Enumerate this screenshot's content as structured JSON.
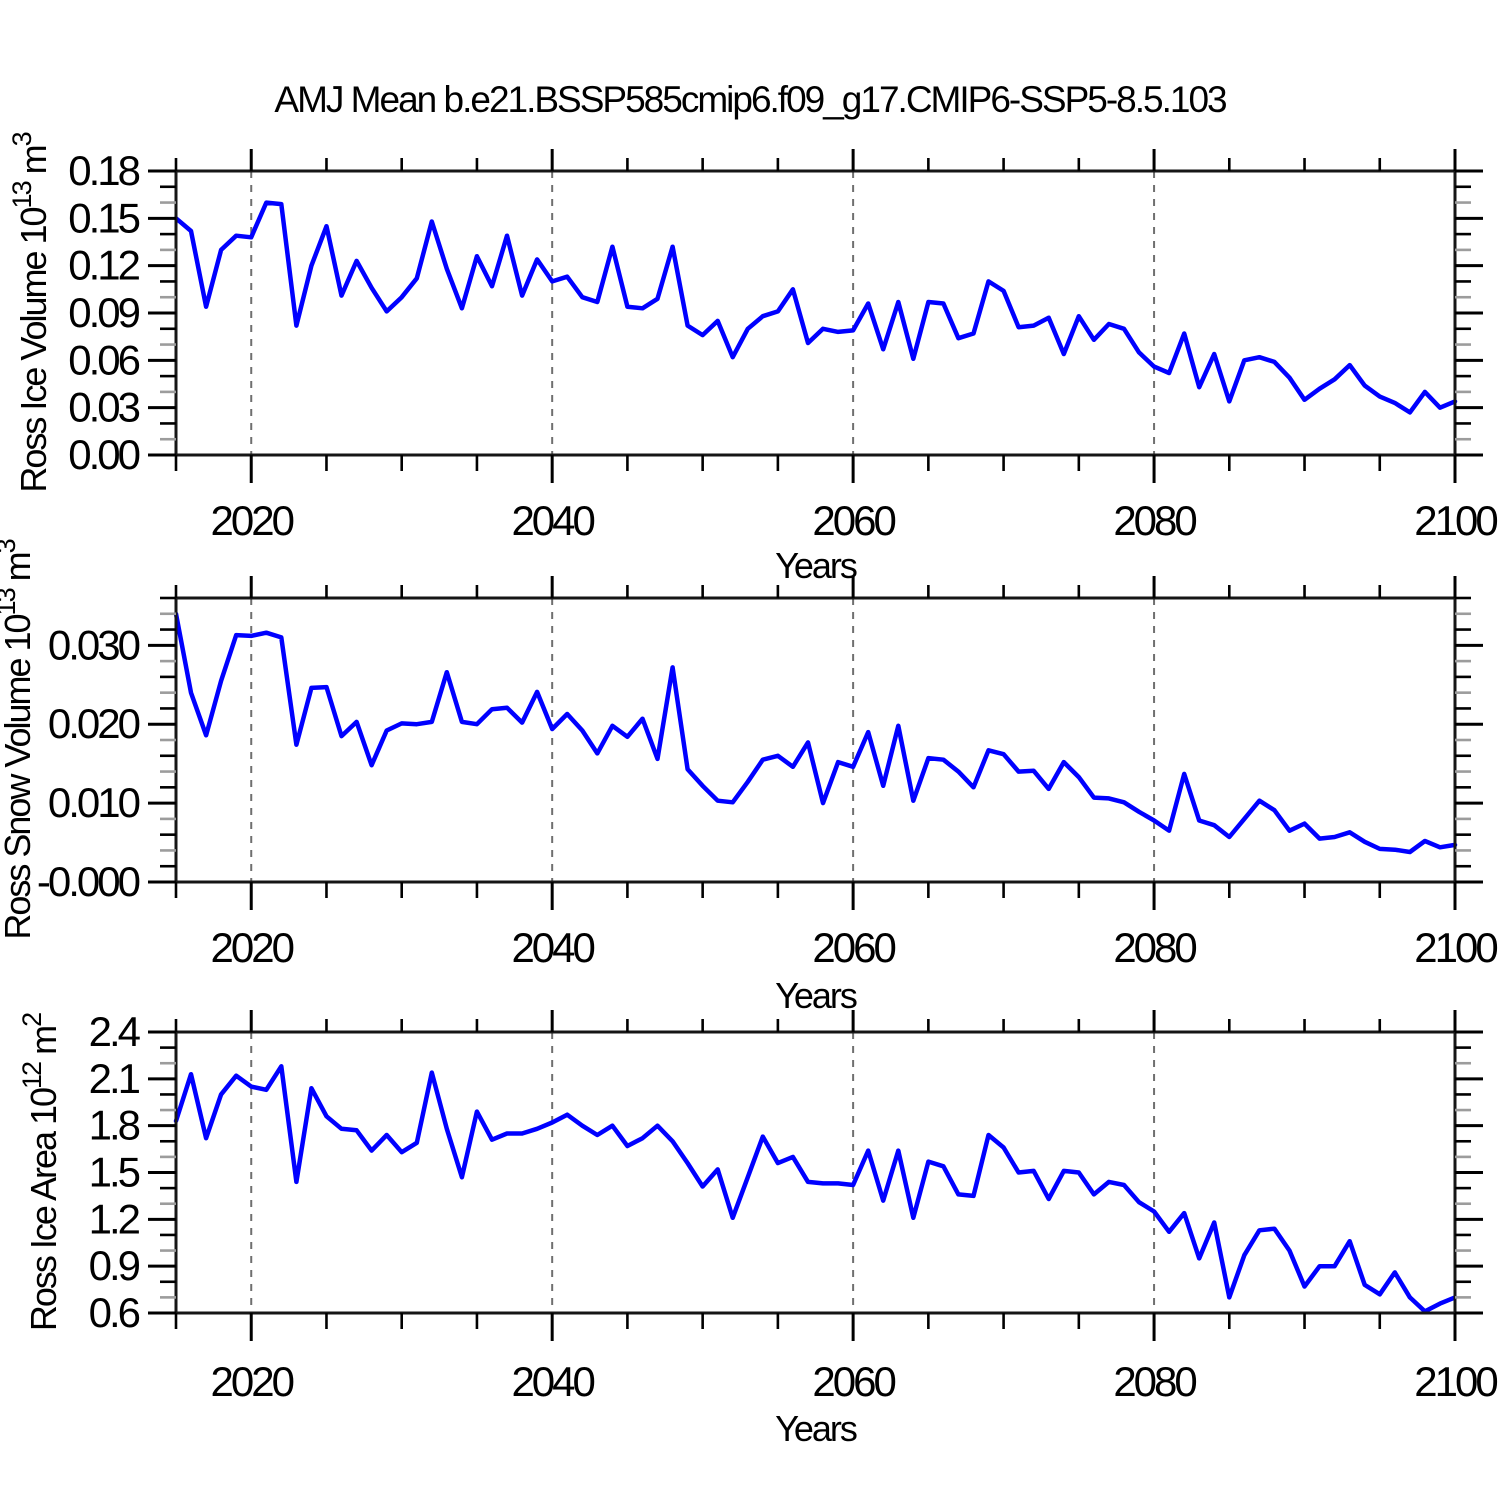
{
  "chart": {
    "title": "AMJ Mean b.e21.BSSP585cmip6.f09_g17.CMIP6-SSP5-8.5.103"
  },
  "styling": {
    "line_color": "#0000ff",
    "axis_color": "#000000",
    "grid_color": "#6f6f6f",
    "minor_tick_gray": "#9c9c9c",
    "background": "#ffffff"
  },
  "chart_data": [
    {
      "type": "line",
      "panel": "ross-ice-volume",
      "title": "",
      "xlabel": "Years",
      "ylabel": "Ross Ice Volume 10^13 m^3",
      "ylabel_parts": [
        {
          "t": "Ross Ice Volume 10"
        },
        {
          "t": "13",
          "sup": true
        },
        {
          "t": " m"
        },
        {
          "t": "3",
          "sup": true
        }
      ],
      "xlim": [
        2015,
        2100
      ],
      "ylim": [
        0,
        0.18
      ],
      "xticks_major": [
        2020,
        2040,
        2060,
        2080,
        2100
      ],
      "xtick_labels": [
        "2020",
        "2040",
        "2060",
        "2080",
        "2100"
      ],
      "xtick_minor_step": 5,
      "grid_years": [
        2020,
        2040,
        2060,
        2080
      ],
      "ytick_major_step": 0.03,
      "ytick_minor_step": 0.01,
      "ytick_decimals": 2,
      "ytick_labels": [
        "0.00",
        "0.03",
        "0.06",
        "0.09",
        "0.12",
        "0.15",
        "0.18"
      ],
      "x": [
        2015,
        2016,
        2017,
        2018,
        2019,
        2020,
        2021,
        2022,
        2023,
        2024,
        2025,
        2026,
        2027,
        2028,
        2029,
        2030,
        2031,
        2032,
        2033,
        2034,
        2035,
        2036,
        2037,
        2038,
        2039,
        2040,
        2041,
        2042,
        2043,
        2044,
        2045,
        2046,
        2047,
        2048,
        2049,
        2050,
        2051,
        2052,
        2053,
        2054,
        2055,
        2056,
        2057,
        2058,
        2059,
        2060,
        2061,
        2062,
        2063,
        2064,
        2065,
        2066,
        2067,
        2068,
        2069,
        2070,
        2071,
        2072,
        2073,
        2074,
        2075,
        2076,
        2077,
        2078,
        2079,
        2080,
        2081,
        2082,
        2083,
        2084,
        2085,
        2086,
        2087,
        2088,
        2089,
        2090,
        2091,
        2092,
        2093,
        2094,
        2095,
        2096,
        2097,
        2098,
        2099,
        2100
      ],
      "values": [
        0.15,
        0.142,
        0.094,
        0.13,
        0.139,
        0.138,
        0.16,
        0.159,
        0.082,
        0.12,
        0.145,
        0.101,
        0.123,
        0.106,
        0.091,
        0.1,
        0.112,
        0.148,
        0.118,
        0.093,
        0.126,
        0.107,
        0.139,
        0.101,
        0.124,
        0.11,
        0.113,
        0.1,
        0.097,
        0.132,
        0.094,
        0.093,
        0.099,
        0.132,
        0.082,
        0.076,
        0.085,
        0.062,
        0.08,
        0.088,
        0.091,
        0.105,
        0.071,
        0.08,
        0.078,
        0.079,
        0.096,
        0.067,
        0.097,
        0.061,
        0.097,
        0.096,
        0.074,
        0.077,
        0.11,
        0.104,
        0.081,
        0.082,
        0.087,
        0.064,
        0.088,
        0.073,
        0.083,
        0.08,
        0.065,
        0.056,
        0.052,
        0.077,
        0.043,
        0.064,
        0.034,
        0.06,
        0.062,
        0.059,
        0.049,
        0.035,
        0.042,
        0.048,
        0.057,
        0.044,
        0.037,
        0.033,
        0.027,
        0.04,
        0.03,
        0.034
      ]
    },
    {
      "type": "line",
      "panel": "ross-snow-volume",
      "title": "",
      "xlabel": "Years",
      "ylabel": "Ross Snow Volume 10^13 m^3",
      "ylabel_parts": [
        {
          "t": "Ross Snow Volume 10"
        },
        {
          "t": "13",
          "sup": true
        },
        {
          "t": " m"
        },
        {
          "t": "3",
          "sup": true
        }
      ],
      "xlim": [
        2015,
        2100
      ],
      "ylim": [
        0,
        0.036
      ],
      "xticks_major": [
        2020,
        2040,
        2060,
        2080,
        2100
      ],
      "xtick_labels": [
        "2020",
        "2040",
        "2060",
        "2080",
        "2100"
      ],
      "xtick_minor_step": 5,
      "grid_years": [
        2020,
        2040,
        2060,
        2080
      ],
      "ytick_major_step": 0.01,
      "ytick_minor_step": 0.002,
      "ytick_decimals": 3,
      "ytick_labels": [
        "0.000",
        "0.010",
        "0.020",
        "0.030"
      ],
      "x": [
        2015,
        2016,
        2017,
        2018,
        2019,
        2020,
        2021,
        2022,
        2023,
        2024,
        2025,
        2026,
        2027,
        2028,
        2029,
        2030,
        2031,
        2032,
        2033,
        2034,
        2035,
        2036,
        2037,
        2038,
        2039,
        2040,
        2041,
        2042,
        2043,
        2044,
        2045,
        2046,
        2047,
        2048,
        2049,
        2050,
        2051,
        2052,
        2053,
        2054,
        2055,
        2056,
        2057,
        2058,
        2059,
        2060,
        2061,
        2062,
        2063,
        2064,
        2065,
        2066,
        2067,
        2068,
        2069,
        2070,
        2071,
        2072,
        2073,
        2074,
        2075,
        2076,
        2077,
        2078,
        2079,
        2080,
        2081,
        2082,
        2083,
        2084,
        2085,
        2086,
        2087,
        2088,
        2089,
        2090,
        2091,
        2092,
        2093,
        2094,
        2095,
        2096,
        2097,
        2098,
        2099,
        2100
      ],
      "values": [
        0.034,
        0.024,
        0.0186,
        0.0255,
        0.0313,
        0.0312,
        0.0316,
        0.031,
        0.0174,
        0.0246,
        0.0247,
        0.0185,
        0.0203,
        0.0148,
        0.0192,
        0.0201,
        0.02,
        0.0203,
        0.0266,
        0.0203,
        0.02,
        0.0219,
        0.0221,
        0.0202,
        0.0241,
        0.0194,
        0.0213,
        0.0192,
        0.0163,
        0.0198,
        0.0184,
        0.0207,
        0.0156,
        0.0272,
        0.0143,
        0.0122,
        0.0103,
        0.0101,
        0.0127,
        0.0155,
        0.016,
        0.0146,
        0.0177,
        0.01,
        0.0152,
        0.0146,
        0.019,
        0.0122,
        0.0198,
        0.0103,
        0.0157,
        0.0155,
        0.014,
        0.012,
        0.0167,
        0.0162,
        0.014,
        0.0141,
        0.0118,
        0.0152,
        0.0133,
        0.0107,
        0.0106,
        0.0101,
        0.0089,
        0.0078,
        0.0065,
        0.0137,
        0.0078,
        0.0072,
        0.0057,
        0.008,
        0.0103,
        0.0091,
        0.0065,
        0.0074,
        0.0055,
        0.0057,
        0.0063,
        0.0051,
        0.0042,
        0.0041,
        0.0038,
        0.0052,
        0.0044,
        0.0047
      ]
    },
    {
      "type": "line",
      "panel": "ross-ice-area",
      "title": "",
      "xlabel": "Years",
      "ylabel": "Ross Ice Area 10^12 m^2",
      "ylabel_parts": [
        {
          "t": "Ross Ice Area 10"
        },
        {
          "t": "12",
          "sup": true
        },
        {
          "t": " m"
        },
        {
          "t": "2",
          "sup": true
        }
      ],
      "xlim": [
        2015,
        2100
      ],
      "ylim": [
        0.6,
        2.4
      ],
      "xticks_major": [
        2020,
        2040,
        2060,
        2080,
        2100
      ],
      "xtick_labels": [
        "2020",
        "2040",
        "2060",
        "2080",
        "2100"
      ],
      "xtick_minor_step": 5,
      "grid_years": [
        2020,
        2040,
        2060,
        2080
      ],
      "ytick_major_step": 0.3,
      "ytick_minor_step": 0.1,
      "ytick_decimals": 1,
      "ytick_labels": [
        "0.6",
        "0.9",
        "1.2",
        "1.5",
        "1.8",
        "2.1",
        "2.4"
      ],
      "x": [
        2015,
        2016,
        2017,
        2018,
        2019,
        2020,
        2021,
        2022,
        2023,
        2024,
        2025,
        2026,
        2027,
        2028,
        2029,
        2030,
        2031,
        2032,
        2033,
        2034,
        2035,
        2036,
        2037,
        2038,
        2039,
        2040,
        2041,
        2042,
        2043,
        2044,
        2045,
        2046,
        2047,
        2048,
        2049,
        2050,
        2051,
        2052,
        2053,
        2054,
        2055,
        2056,
        2057,
        2058,
        2059,
        2060,
        2061,
        2062,
        2063,
        2064,
        2065,
        2066,
        2067,
        2068,
        2069,
        2070,
        2071,
        2072,
        2073,
        2074,
        2075,
        2076,
        2077,
        2078,
        2079,
        2080,
        2081,
        2082,
        2083,
        2084,
        2085,
        2086,
        2087,
        2088,
        2089,
        2090,
        2091,
        2092,
        2093,
        2094,
        2095,
        2096,
        2097,
        2098,
        2099,
        2100
      ],
      "values": [
        1.83,
        2.13,
        1.72,
        2.0,
        2.12,
        2.05,
        2.03,
        2.18,
        1.44,
        2.04,
        1.86,
        1.78,
        1.77,
        1.64,
        1.74,
        1.63,
        1.69,
        2.14,
        1.78,
        1.47,
        1.89,
        1.71,
        1.75,
        1.75,
        1.78,
        1.82,
        1.87,
        1.8,
        1.74,
        1.8,
        1.67,
        1.72,
        1.8,
        1.7,
        1.56,
        1.41,
        1.52,
        1.21,
        1.47,
        1.73,
        1.56,
        1.6,
        1.44,
        1.43,
        1.43,
        1.42,
        1.64,
        1.32,
        1.64,
        1.21,
        1.57,
        1.54,
        1.36,
        1.35,
        1.74,
        1.66,
        1.5,
        1.51,
        1.33,
        1.51,
        1.5,
        1.36,
        1.44,
        1.42,
        1.31,
        1.25,
        1.12,
        1.24,
        0.95,
        1.18,
        0.7,
        0.97,
        1.13,
        1.14,
        1.0,
        0.77,
        0.9,
        0.9,
        1.06,
        0.78,
        0.72,
        0.86,
        0.7,
        0.61,
        0.66,
        0.7
      ]
    }
  ]
}
